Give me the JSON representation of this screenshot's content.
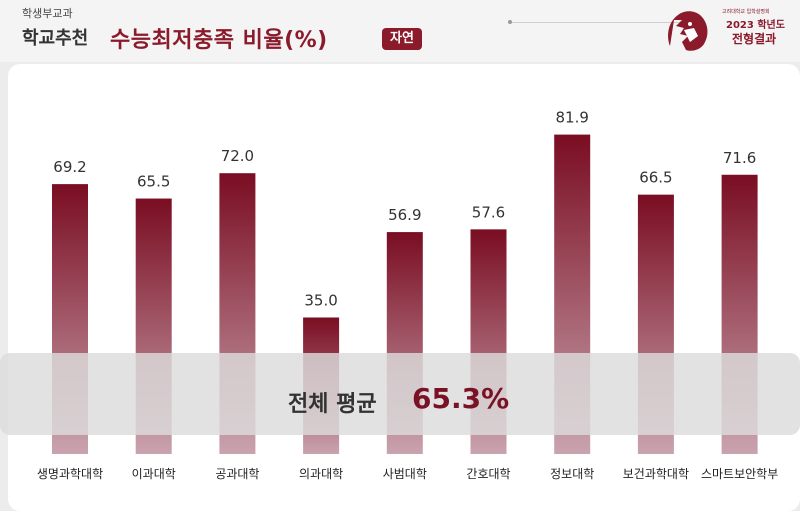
{
  "header": {
    "sub": "학생부교과",
    "category": "학교추천",
    "title": "수능최저충족 비율(%)",
    "badge": "자연",
    "logo_small": "고려대학교 입학설명회",
    "logo_year": "2023 학년도",
    "logo_main": "전형결과",
    "logo_icon": "tiger-logo-icon"
  },
  "colors": {
    "accent": "#8b1a2b",
    "bar_top": "#7a0d22",
    "bar_bottom": "#c9a3ae"
  },
  "average": {
    "label": "전체 평균",
    "value": "65.3%"
  },
  "chart_data": {
    "type": "bar",
    "categories": [
      "생명과학대학",
      "이과대학",
      "공과대학",
      "의과대학",
      "사범대학",
      "간호대학",
      "정보대학",
      "보건과학대학",
      "스마트보안학부"
    ],
    "values": [
      69.2,
      65.5,
      72.0,
      35.0,
      56.9,
      57.6,
      81.9,
      66.5,
      71.6
    ],
    "value_labels": [
      "69.2",
      "65.5",
      "72.0",
      "35.0",
      "56.9",
      "57.6",
      "81.9",
      "66.5",
      "71.6"
    ],
    "title": "수능최저충족 비율(%)",
    "xlabel": "",
    "ylabel": "",
    "ylim": [
      0,
      100
    ],
    "grid": false,
    "average": 65.3
  }
}
